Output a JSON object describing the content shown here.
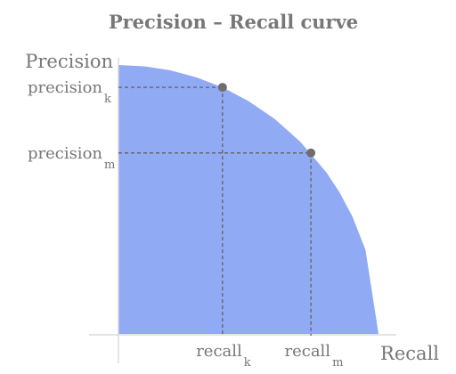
{
  "chart_data": {
    "type": "area",
    "title": "Precision – Recall curve",
    "xlabel": "Recall",
    "ylabel": "Precision",
    "xlim": [
      0,
      1
    ],
    "ylim": [
      0,
      1
    ],
    "grid": false,
    "series": [
      {
        "x": [
          0,
          0.1,
          0.2,
          0.3,
          0.4,
          0.5,
          0.6,
          0.7,
          0.8,
          0.85,
          0.9,
          0.95,
          1.0
        ],
        "y": [
          1.0,
          0.995,
          0.98,
          0.954,
          0.917,
          0.866,
          0.8,
          0.714,
          0.6,
          0.527,
          0.436,
          0.312,
          0.0
        ]
      }
    ],
    "points": [
      {
        "x": 0.4,
        "y": 0.917,
        "x_label": "recall",
        "x_sub": "k",
        "y_label": "precision",
        "y_sub": "k"
      },
      {
        "x": 0.74,
        "y": 0.673,
        "x_label": "recall",
        "x_sub": "m",
        "y_label": "precision",
        "y_sub": "m"
      }
    ],
    "colors": {
      "fill": "#91aaf4",
      "text": "#777777",
      "axis": "#d4d4d4",
      "guide": "#666666",
      "point": "#6e6e6e"
    }
  }
}
